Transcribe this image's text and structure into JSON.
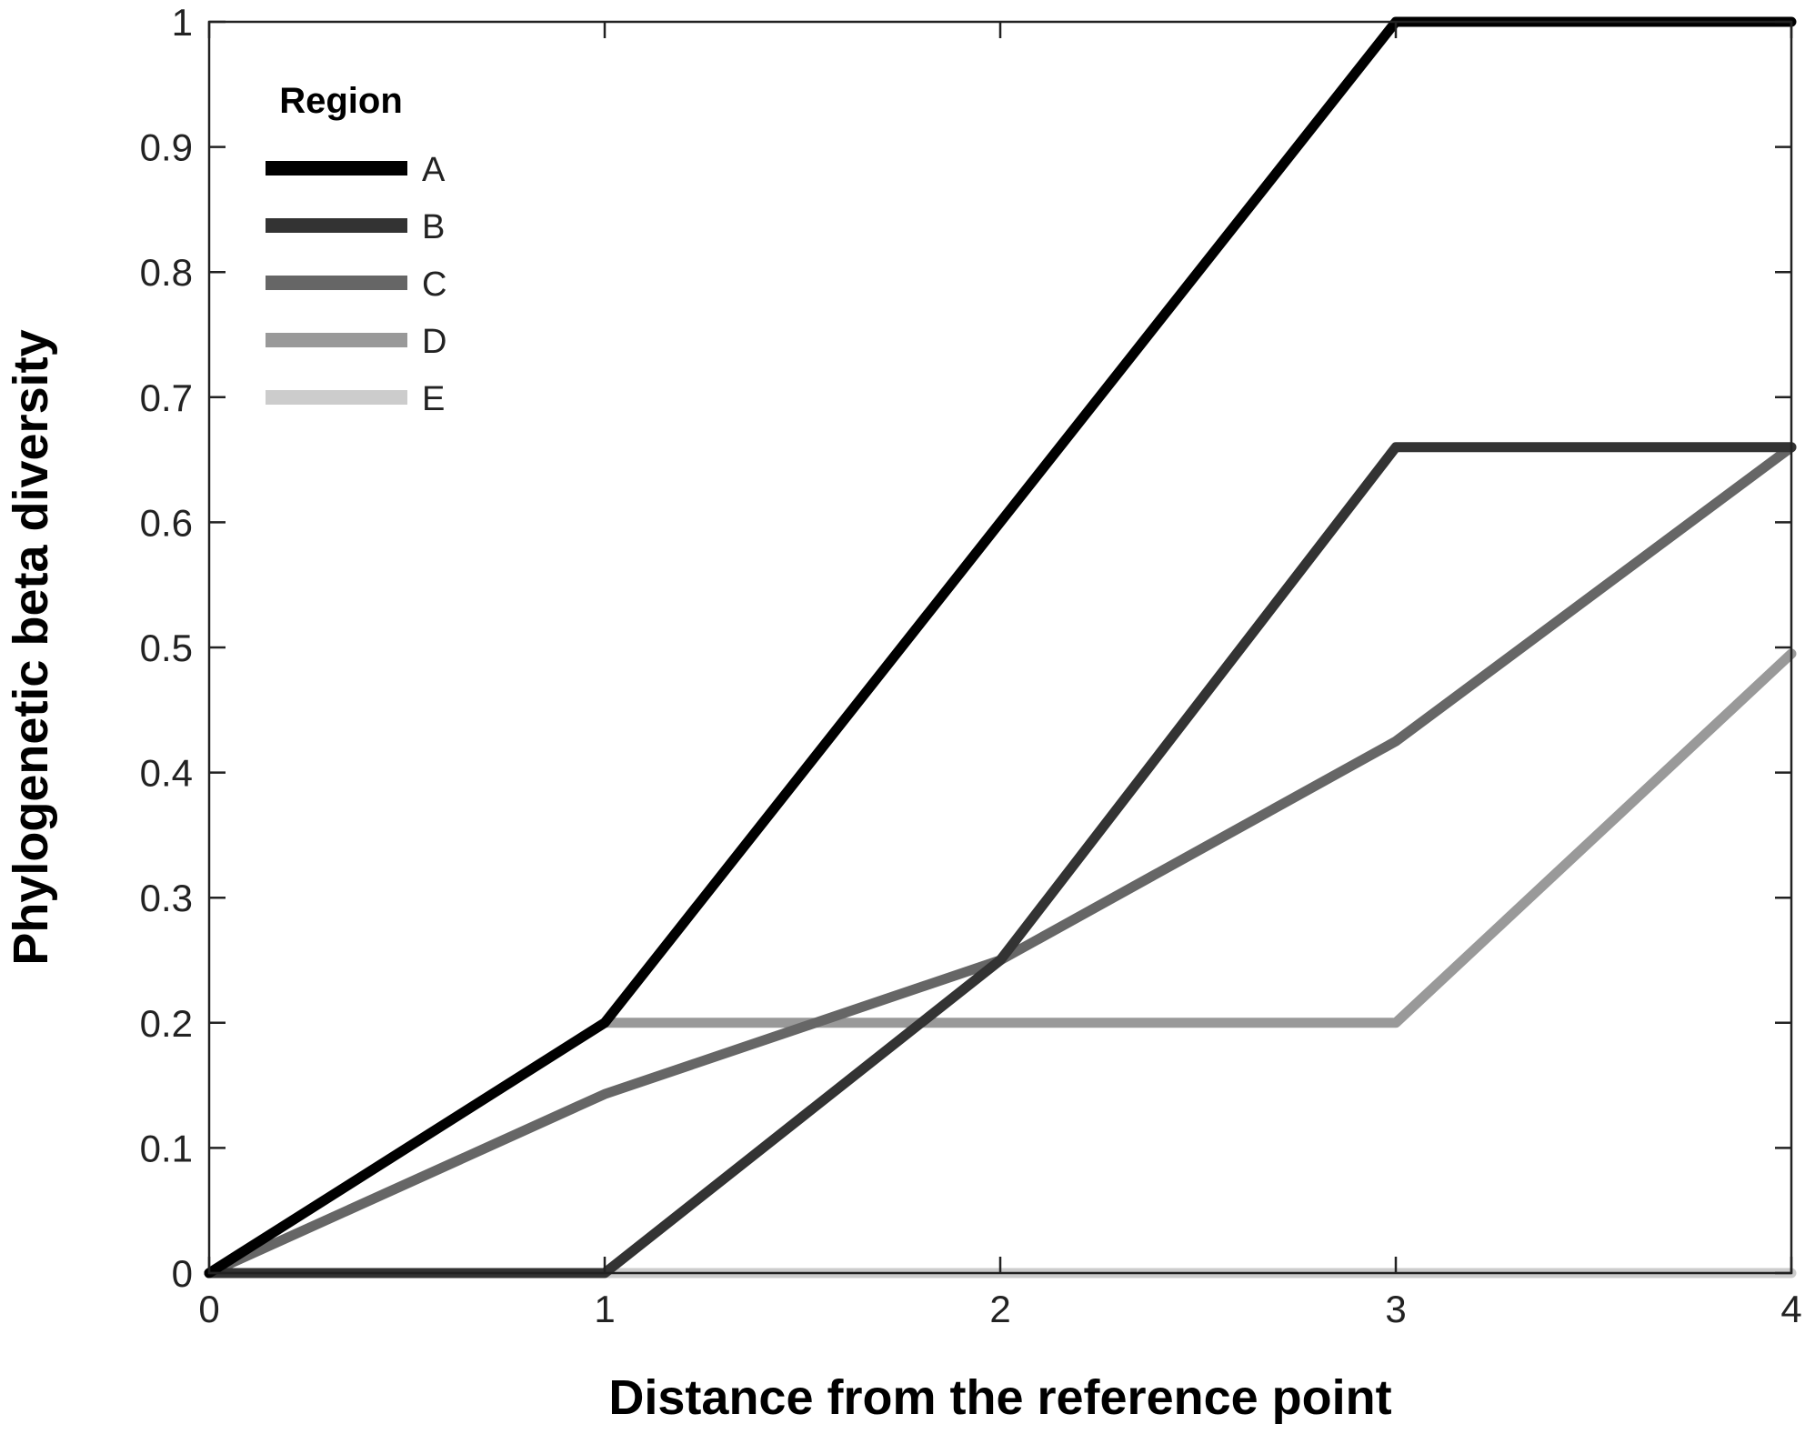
{
  "chart_data": {
    "type": "line",
    "title": "",
    "xlabel": "Distance from the reference point",
    "ylabel": "Phylogenetic beta diversity",
    "xlim": [
      0,
      4
    ],
    "ylim": [
      0,
      1
    ],
    "x_ticks": [
      0,
      1,
      2,
      3,
      4
    ],
    "y_ticks": [
      0,
      0.1,
      0.2,
      0.3,
      0.4,
      0.5,
      0.6,
      0.7,
      0.8,
      0.9,
      1
    ],
    "x_tick_labels": [
      "0",
      "1",
      "2",
      "3",
      "4"
    ],
    "y_tick_labels": [
      "0",
      "0.1",
      "0.2",
      "0.3",
      "0.4",
      "0.5",
      "0.6",
      "0.7",
      "0.8",
      "0.9",
      "1"
    ],
    "grid": false,
    "legend": {
      "title": "Region",
      "position": "top-left"
    },
    "x": [
      0,
      1,
      2,
      3,
      4
    ],
    "series": [
      {
        "name": "A",
        "values": [
          0,
          0.2,
          0.6,
          1.0,
          1.0
        ],
        "color": "#000000"
      },
      {
        "name": "B",
        "values": [
          0,
          0,
          0.25,
          0.66,
          0.66
        ],
        "color": "#333333"
      },
      {
        "name": "C",
        "values": [
          0,
          0.143,
          0.25,
          0.425,
          0.66
        ],
        "color": "#666666"
      },
      {
        "name": "D",
        "values": [
          0,
          0.2,
          0.2,
          0.2,
          0.495
        ],
        "color": "#999999"
      },
      {
        "name": "E",
        "values": [
          0,
          0,
          0,
          0,
          0
        ],
        "color": "#cccccc"
      }
    ]
  }
}
